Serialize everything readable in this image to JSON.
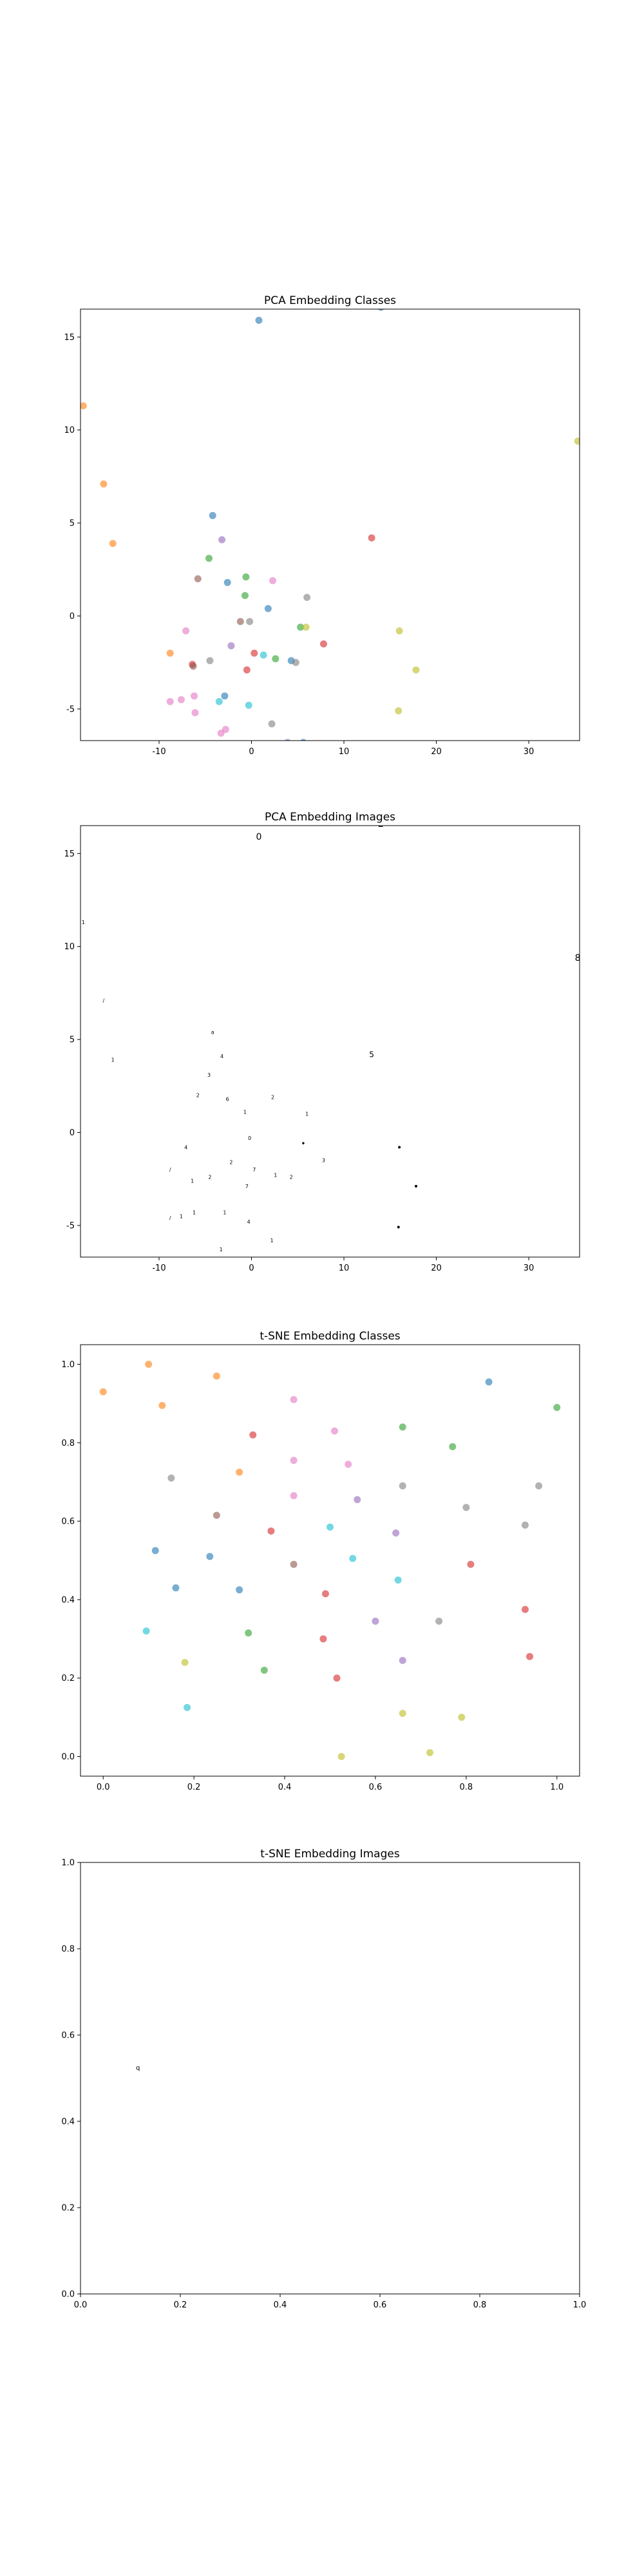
{
  "chart_data": [
    {
      "type": "scatter",
      "title": "PCA Embedding Classes",
      "xlim": [
        -18.5,
        35.5
      ],
      "ylim": [
        -6.7,
        16.5
      ],
      "xticks": [
        -10,
        0,
        10,
        20,
        30
      ],
      "yticks": [
        -5,
        0,
        5,
        10,
        15
      ],
      "points": [
        {
          "x": 0.8,
          "y": 15.9,
          "color": "#1f77b4"
        },
        {
          "x": 14.0,
          "y": 16.6,
          "color": "#1f77b4"
        },
        {
          "x": -18.2,
          "y": 11.3,
          "color": "#ff7f0e"
        },
        {
          "x": -16.0,
          "y": 7.1,
          "color": "#ff7f0e"
        },
        {
          "x": -15.0,
          "y": 3.9,
          "color": "#ff7f0e"
        },
        {
          "x": 35.3,
          "y": 9.4,
          "color": "#bcbd22"
        },
        {
          "x": -4.2,
          "y": 5.4,
          "color": "#1f77b4"
        },
        {
          "x": -3.2,
          "y": 4.1,
          "color": "#9467bd"
        },
        {
          "x": 13.0,
          "y": 4.2,
          "color": "#d62728"
        },
        {
          "x": -4.6,
          "y": 3.1,
          "color": "#2ca02c"
        },
        {
          "x": -5.8,
          "y": 2.0,
          "color": "#8c564b"
        },
        {
          "x": -0.6,
          "y": 2.1,
          "color": "#2ca02c"
        },
        {
          "x": -2.6,
          "y": 1.8,
          "color": "#1f77b4"
        },
        {
          "x": 2.3,
          "y": 1.9,
          "color": "#e377c2"
        },
        {
          "x": -0.7,
          "y": 1.1,
          "color": "#2ca02c"
        },
        {
          "x": 6.0,
          "y": 1.0,
          "color": "#7f7f7f"
        },
        {
          "x": 1.8,
          "y": 0.4,
          "color": "#1f77b4"
        },
        {
          "x": -1.2,
          "y": -0.3,
          "color": "#8c564b"
        },
        {
          "x": -0.2,
          "y": -0.3,
          "color": "#7f7f7f"
        },
        {
          "x": 5.3,
          "y": -0.6,
          "color": "#2ca02c"
        },
        {
          "x": 5.9,
          "y": -0.6,
          "color": "#bcbd22"
        },
        {
          "x": 16.0,
          "y": -0.8,
          "color": "#bcbd22"
        },
        {
          "x": -7.1,
          "y": -0.8,
          "color": "#e377c2"
        },
        {
          "x": 7.8,
          "y": -1.5,
          "color": "#d62728"
        },
        {
          "x": -2.2,
          "y": -1.6,
          "color": "#9467bd"
        },
        {
          "x": -8.8,
          "y": -2.0,
          "color": "#ff7f0e"
        },
        {
          "x": 0.3,
          "y": -2.0,
          "color": "#d62728"
        },
        {
          "x": 1.3,
          "y": -2.1,
          "color": "#17becf"
        },
        {
          "x": 2.6,
          "y": -2.3,
          "color": "#2ca02c"
        },
        {
          "x": 4.3,
          "y": -2.4,
          "color": "#1f77b4"
        },
        {
          "x": 4.8,
          "y": -2.5,
          "color": "#7f7f7f"
        },
        {
          "x": -4.5,
          "y": -2.4,
          "color": "#7f7f7f"
        },
        {
          "x": -6.4,
          "y": -2.6,
          "color": "#d62728"
        },
        {
          "x": -6.3,
          "y": -2.7,
          "color": "#8c564b"
        },
        {
          "x": -0.5,
          "y": -2.9,
          "color": "#d62728"
        },
        {
          "x": 17.8,
          "y": -2.9,
          "color": "#bcbd22"
        },
        {
          "x": -2.9,
          "y": -4.3,
          "color": "#1f77b4"
        },
        {
          "x": -6.2,
          "y": -4.3,
          "color": "#e377c2"
        },
        {
          "x": -7.6,
          "y": -4.5,
          "color": "#e377c2"
        },
        {
          "x": -3.5,
          "y": -4.6,
          "color": "#17becf"
        },
        {
          "x": -8.8,
          "y": -4.6,
          "color": "#e377c2"
        },
        {
          "x": -0.3,
          "y": -4.8,
          "color": "#17becf"
        },
        {
          "x": 15.9,
          "y": -5.1,
          "color": "#bcbd22"
        },
        {
          "x": -6.1,
          "y": -5.2,
          "color": "#e377c2"
        },
        {
          "x": 2.2,
          "y": -5.8,
          "color": "#7f7f7f"
        },
        {
          "x": -2.8,
          "y": -6.1,
          "color": "#e377c2"
        },
        {
          "x": -3.3,
          "y": -6.3,
          "color": "#e377c2"
        },
        {
          "x": 3.9,
          "y": -6.8,
          "color": "#9467bd"
        },
        {
          "x": 5.6,
          "y": -6.8,
          "color": "#1f77b4"
        }
      ]
    },
    {
      "type": "scatter",
      "title": "PCA Embedding Images",
      "xlim": [
        -18.5,
        35.5
      ],
      "ylim": [
        -6.7,
        16.5
      ],
      "xticks": [
        -10,
        0,
        10,
        20,
        30
      ],
      "yticks": [
        -5,
        0,
        5,
        10,
        15
      ],
      "points": [
        {
          "x": 0.8,
          "y": 15.9,
          "label": "0",
          "size": 14
        },
        {
          "x": 14.0,
          "y": 16.6,
          "label": "2",
          "size": 14
        },
        {
          "x": -18.2,
          "y": 11.3,
          "label": "1",
          "size": 8
        },
        {
          "x": -16.0,
          "y": 7.1,
          "label": "/",
          "size": 8
        },
        {
          "x": -15.0,
          "y": 3.9,
          "label": "1",
          "size": 8
        },
        {
          "x": 35.3,
          "y": 9.4,
          "label": "8",
          "size": 14
        },
        {
          "x": -4.2,
          "y": 5.4,
          "label": "a",
          "size": 8
        },
        {
          "x": -3.2,
          "y": 4.1,
          "label": "4",
          "size": 8
        },
        {
          "x": 13.0,
          "y": 4.2,
          "label": "5",
          "size": 12
        },
        {
          "x": -4.6,
          "y": 3.1,
          "label": "3",
          "size": 8
        },
        {
          "x": -5.8,
          "y": 2.0,
          "label": "2",
          "size": 8
        },
        {
          "x": -2.6,
          "y": 1.8,
          "label": "6",
          "size": 8
        },
        {
          "x": 2.3,
          "y": 1.9,
          "label": "2",
          "size": 8
        },
        {
          "x": -0.7,
          "y": 1.1,
          "label": "1",
          "size": 8
        },
        {
          "x": 6.0,
          "y": 1.0,
          "label": "1",
          "size": 8
        },
        {
          "x": -0.2,
          "y": -0.3,
          "label": "0",
          "size": 8
        },
        {
          "x": 5.6,
          "y": -0.6,
          "label": "•",
          "size": 12
        },
        {
          "x": 16.0,
          "y": -0.8,
          "label": "•",
          "size": 14
        },
        {
          "x": 7.8,
          "y": -1.5,
          "label": "3",
          "size": 8
        },
        {
          "x": -7.1,
          "y": -0.8,
          "label": "4",
          "size": 8
        },
        {
          "x": -2.2,
          "y": -1.6,
          "label": "2",
          "size": 8
        },
        {
          "x": -8.8,
          "y": -2.0,
          "label": "/",
          "size": 8
        },
        {
          "x": 0.3,
          "y": -2.0,
          "label": "7",
          "size": 8
        },
        {
          "x": 2.6,
          "y": -2.3,
          "label": "1",
          "size": 8
        },
        {
          "x": 4.3,
          "y": -2.4,
          "label": "2",
          "size": 8
        },
        {
          "x": -4.5,
          "y": -2.4,
          "label": "2",
          "size": 8
        },
        {
          "x": -6.4,
          "y": -2.6,
          "label": "1",
          "size": 8
        },
        {
          "x": -0.5,
          "y": -2.9,
          "label": "7",
          "size": 8
        },
        {
          "x": 17.8,
          "y": -2.9,
          "label": "•",
          "size": 14
        },
        {
          "x": -2.9,
          "y": -4.3,
          "label": "1",
          "size": 8
        },
        {
          "x": -6.2,
          "y": -4.3,
          "label": "1",
          "size": 8
        },
        {
          "x": -7.6,
          "y": -4.5,
          "label": "1",
          "size": 8
        },
        {
          "x": -8.8,
          "y": -4.6,
          "label": "/",
          "size": 8
        },
        {
          "x": -0.3,
          "y": -4.8,
          "label": "4",
          "size": 8
        },
        {
          "x": 15.9,
          "y": -5.1,
          "label": "•",
          "size": 14
        },
        {
          "x": 2.2,
          "y": -5.8,
          "label": "1",
          "size": 8
        },
        {
          "x": -3.3,
          "y": -6.3,
          "label": "1",
          "size": 8
        },
        {
          "x": 3.9,
          "y": -6.8,
          "label": "1",
          "size": 8
        },
        {
          "x": 5.6,
          "y": -6.8,
          "label": "1",
          "size": 8
        }
      ]
    },
    {
      "type": "scatter",
      "title": "t-SNE Embedding Classes",
      "xlim": [
        -0.05,
        1.05
      ],
      "ylim": [
        -0.05,
        1.05
      ],
      "xticks": [
        "0.0",
        "0.2",
        "0.4",
        "0.6",
        "0.8",
        "1.0"
      ],
      "yticks": [
        "0.0",
        "0.2",
        "0.4",
        "0.6",
        "0.8",
        "1.0"
      ],
      "points": [
        {
          "x": 0.0,
          "y": 0.93,
          "color": "#ff7f0e"
        },
        {
          "x": 0.1,
          "y": 1.0,
          "color": "#ff7f0e"
        },
        {
          "x": 0.13,
          "y": 0.895,
          "color": "#ff7f0e"
        },
        {
          "x": 0.25,
          "y": 0.97,
          "color": "#ff7f0e"
        },
        {
          "x": 0.15,
          "y": 0.71,
          "color": "#7f7f7f"
        },
        {
          "x": 0.3,
          "y": 0.725,
          "color": "#ff7f0e"
        },
        {
          "x": 0.33,
          "y": 0.82,
          "color": "#d62728"
        },
        {
          "x": 0.42,
          "y": 0.91,
          "color": "#e377c2"
        },
        {
          "x": 0.51,
          "y": 0.83,
          "color": "#e377c2"
        },
        {
          "x": 0.42,
          "y": 0.755,
          "color": "#e377c2"
        },
        {
          "x": 0.54,
          "y": 0.745,
          "color": "#e377c2"
        },
        {
          "x": 0.66,
          "y": 0.84,
          "color": "#2ca02c"
        },
        {
          "x": 0.77,
          "y": 0.79,
          "color": "#2ca02c"
        },
        {
          "x": 0.85,
          "y": 0.955,
          "color": "#1f77b4"
        },
        {
          "x": 1.0,
          "y": 0.89,
          "color": "#2ca02c"
        },
        {
          "x": 0.66,
          "y": 0.69,
          "color": "#7f7f7f"
        },
        {
          "x": 0.8,
          "y": 0.635,
          "color": "#7f7f7f"
        },
        {
          "x": 0.96,
          "y": 0.69,
          "color": "#7f7f7f"
        },
        {
          "x": 0.56,
          "y": 0.655,
          "color": "#9467bd"
        },
        {
          "x": 0.42,
          "y": 0.665,
          "color": "#e377c2"
        },
        {
          "x": 0.25,
          "y": 0.615,
          "color": "#8c564b"
        },
        {
          "x": 0.37,
          "y": 0.575,
          "color": "#d62728"
        },
        {
          "x": 0.5,
          "y": 0.585,
          "color": "#17becf"
        },
        {
          "x": 0.645,
          "y": 0.57,
          "color": "#9467bd"
        },
        {
          "x": 0.93,
          "y": 0.59,
          "color": "#7f7f7f"
        },
        {
          "x": 0.115,
          "y": 0.525,
          "color": "#1f77b4"
        },
        {
          "x": 0.235,
          "y": 0.51,
          "color": "#1f77b4"
        },
        {
          "x": 0.42,
          "y": 0.49,
          "color": "#8c564b"
        },
        {
          "x": 0.55,
          "y": 0.505,
          "color": "#17becf"
        },
        {
          "x": 0.81,
          "y": 0.49,
          "color": "#d62728"
        },
        {
          "x": 0.16,
          "y": 0.43,
          "color": "#1f77b4"
        },
        {
          "x": 0.3,
          "y": 0.425,
          "color": "#1f77b4"
        },
        {
          "x": 0.49,
          "y": 0.415,
          "color": "#d62728"
        },
        {
          "x": 0.65,
          "y": 0.45,
          "color": "#17becf"
        },
        {
          "x": 0.6,
          "y": 0.345,
          "color": "#9467bd"
        },
        {
          "x": 0.74,
          "y": 0.345,
          "color": "#7f7f7f"
        },
        {
          "x": 0.93,
          "y": 0.375,
          "color": "#d62728"
        },
        {
          "x": 0.095,
          "y": 0.32,
          "color": "#17becf"
        },
        {
          "x": 0.32,
          "y": 0.315,
          "color": "#2ca02c"
        },
        {
          "x": 0.485,
          "y": 0.3,
          "color": "#d62728"
        },
        {
          "x": 0.18,
          "y": 0.24,
          "color": "#bcbd22"
        },
        {
          "x": 0.66,
          "y": 0.245,
          "color": "#9467bd"
        },
        {
          "x": 0.94,
          "y": 0.255,
          "color": "#d62728"
        },
        {
          "x": 0.355,
          "y": 0.22,
          "color": "#2ca02c"
        },
        {
          "x": 0.515,
          "y": 0.2,
          "color": "#d62728"
        },
        {
          "x": 0.185,
          "y": 0.125,
          "color": "#17becf"
        },
        {
          "x": 0.66,
          "y": 0.11,
          "color": "#bcbd22"
        },
        {
          "x": 0.79,
          "y": 0.1,
          "color": "#bcbd22"
        },
        {
          "x": 0.72,
          "y": 0.01,
          "color": "#bcbd22"
        },
        {
          "x": 0.525,
          "y": 0.0,
          "color": "#bcbd22"
        }
      ]
    },
    {
      "type": "scatter",
      "title": "t-SNE Embedding Images",
      "xlim": [
        0.0,
        1.0
      ],
      "ylim": [
        0.0,
        1.0
      ],
      "xticks": [
        "0.0",
        "0.2",
        "0.4",
        "0.6",
        "0.8",
        "1.0"
      ],
      "yticks": [
        "0.0",
        "0.2",
        "0.4",
        "0.6",
        "0.8",
        "1.0"
      ],
      "points": [
        {
          "x": 0.115,
          "y": 0.525,
          "label": "q",
          "size": 10
        }
      ]
    }
  ]
}
